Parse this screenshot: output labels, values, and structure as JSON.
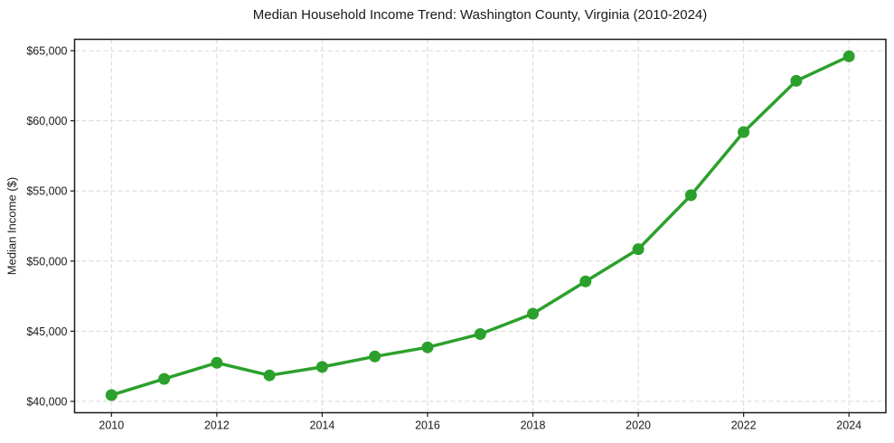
{
  "chart_data": {
    "type": "line",
    "title": "Median Household Income Trend: Washington County, Virginia (2010-2024)",
    "xlabel": "",
    "ylabel": "Median Income ($)",
    "x": [
      2010,
      2011,
      2012,
      2013,
      2014,
      2015,
      2016,
      2017,
      2018,
      2019,
      2020,
      2021,
      2022,
      2023,
      2024
    ],
    "series": [
      {
        "name": "Median Household Income",
        "values": [
          40450,
          41600,
          42750,
          41850,
          42450,
          43200,
          43850,
          44800,
          46250,
          48550,
          50850,
          54700,
          59200,
          62850,
          64600
        ]
      }
    ],
    "xticks": [
      2010,
      2012,
      2014,
      2016,
      2018,
      2020,
      2022,
      2024
    ],
    "xtick_labels": [
      "2010",
      "2012",
      "2014",
      "2016",
      "2018",
      "2020",
      "2022",
      "2024"
    ],
    "yticks": [
      40000,
      45000,
      50000,
      55000,
      60000,
      65000
    ],
    "ytick_labels": [
      "$40,000",
      "$45,000",
      "$50,000",
      "$55,000",
      "$60,000",
      "$65,000"
    ],
    "xlim": [
      2009.3,
      2024.7
    ],
    "ylim": [
      39190,
      65810
    ],
    "grid": true,
    "grid_style": "dashed",
    "legend": false,
    "marker": "circle",
    "colors": {
      "line": "#2ca02c",
      "marker": "#2ca02c",
      "grid": "#d8d8d8",
      "axis": "#1a1a1a",
      "text": "#1a1a1a",
      "background": "#ffffff"
    }
  }
}
